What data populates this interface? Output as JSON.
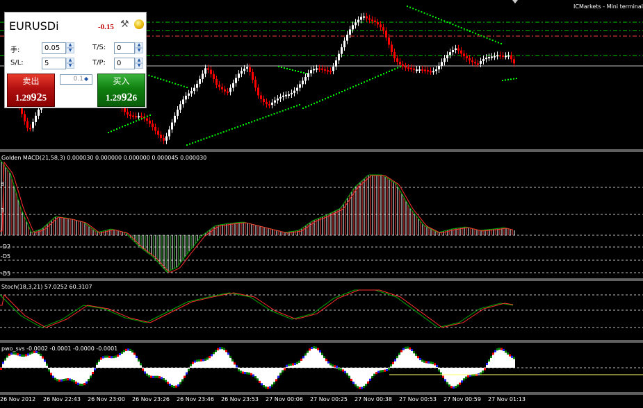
{
  "broker_label": "ICMarkets - Mini terminal",
  "panel": {
    "symbol": "EURUSDi",
    "profit": "-0.15",
    "tools_icon": "hammer-wrench-icon",
    "coin_icon": "coin-icon",
    "lots_label": "手:",
    "lots_value": "0.05",
    "sl_label": "S/L:",
    "sl_value": "5",
    "ts_label": "T/S:",
    "ts_value": "0",
    "tp_label": "T/P:",
    "tp_value": "0",
    "sell_label": "卖出",
    "buy_label": "买入",
    "step_value": "0.1",
    "sell_price_prefix": "1.29",
    "sell_price_big": "92",
    "sell_price_suffix": "5",
    "buy_price_prefix": "1.29",
    "buy_price_big": "92",
    "buy_price_suffix": "6"
  },
  "indicators": {
    "macd": "Golden MACD(21,58,3) 0.000030 0.000000 0.000000 0.000045 0.000030",
    "stoch": "Stoch(18,3,21) 57.0252 60.3107",
    "pwo": "pwo_svs -0.0002 -0.0001 -0.0000 -0.0001"
  },
  "macd_axis": [
    "8",
    "3",
    "-D2",
    "-D5",
    "-D5"
  ],
  "time_axis": [
    "26 Nov 2012",
    "26 Nov 22:43",
    "26 Nov 23:00",
    "26 Nov 23:26",
    "26 Nov 23:46",
    "26 Nov 23:53",
    "27 Nov 00:06",
    "27 Nov 00:25",
    "27 Nov 00:38",
    "27 Nov 00:53",
    "27 Nov 00:59",
    "27 Nov 01:13"
  ],
  "colors": {
    "bull": "#ffffff",
    "bear": "#ff0000",
    "dots": "#00ff00",
    "macd_line": "#00aa00",
    "signal_line": "#ff3030",
    "pwo_up": "#ffffff",
    "pwo_green": "#008000",
    "pwo_red": "#ff0000",
    "pwo_blue": "#2020ff"
  }
}
